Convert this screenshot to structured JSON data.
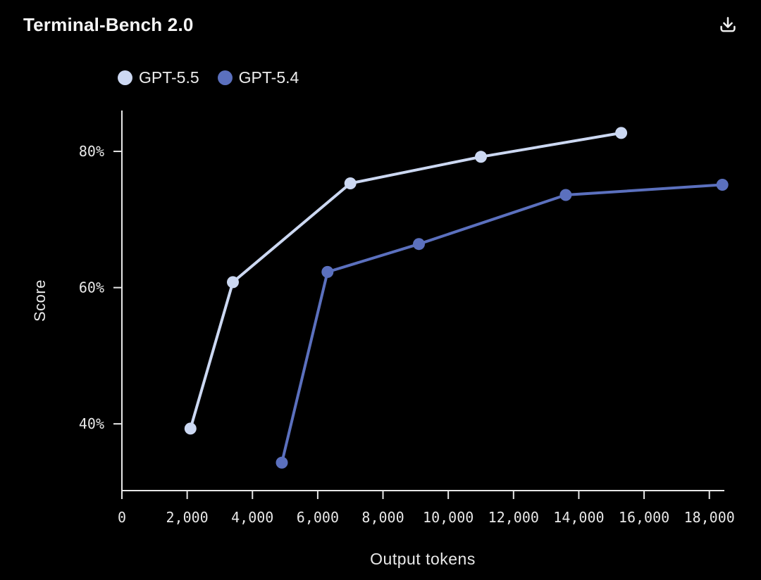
{
  "header": {
    "title": "Terminal-Bench 2.0"
  },
  "legend": {
    "items": [
      {
        "label": "GPT-5.5",
        "color": "#ccd8f2"
      },
      {
        "label": "GPT-5.4",
        "color": "#5b70be"
      }
    ]
  },
  "icons": {
    "download": "download-icon"
  },
  "style": {
    "background": "#000000",
    "axis_color": "#e8e8e8",
    "tick_text_color": "#e8e8e8",
    "title_color": "#f5f5f5"
  },
  "chart_data": {
    "type": "line",
    "title": "Terminal-Bench 2.0",
    "xlabel": "Output tokens",
    "ylabel": "Score",
    "grid": false,
    "legend_position": "top-left",
    "xlim": [
      0,
      18460
    ],
    "ylim": [
      30.2,
      86
    ],
    "x_ticks": [
      0,
      2000,
      4000,
      6000,
      8000,
      10000,
      12000,
      14000,
      16000,
      18000
    ],
    "x_tick_labels": [
      "0",
      "2,000",
      "4,000",
      "6,000",
      "8,000",
      "10,000",
      "12,000",
      "14,000",
      "16,000",
      "18,000"
    ],
    "y_ticks": [
      40,
      60,
      80
    ],
    "y_tick_labels": [
      "40%",
      "60%",
      "80%"
    ],
    "series": [
      {
        "name": "GPT-5.5",
        "color": "#ccd8f2",
        "points": [
          [
            2100,
            39.3
          ],
          [
            3400,
            60.8
          ],
          [
            7000,
            75.3
          ],
          [
            11000,
            79.2
          ],
          [
            15300,
            82.7
          ]
        ]
      },
      {
        "name": "GPT-5.4",
        "color": "#5b70be",
        "points": [
          [
            4900,
            34.3
          ],
          [
            6300,
            62.3
          ],
          [
            9100,
            66.4
          ],
          [
            13600,
            73.6
          ],
          [
            18400,
            75.1
          ]
        ]
      }
    ]
  }
}
